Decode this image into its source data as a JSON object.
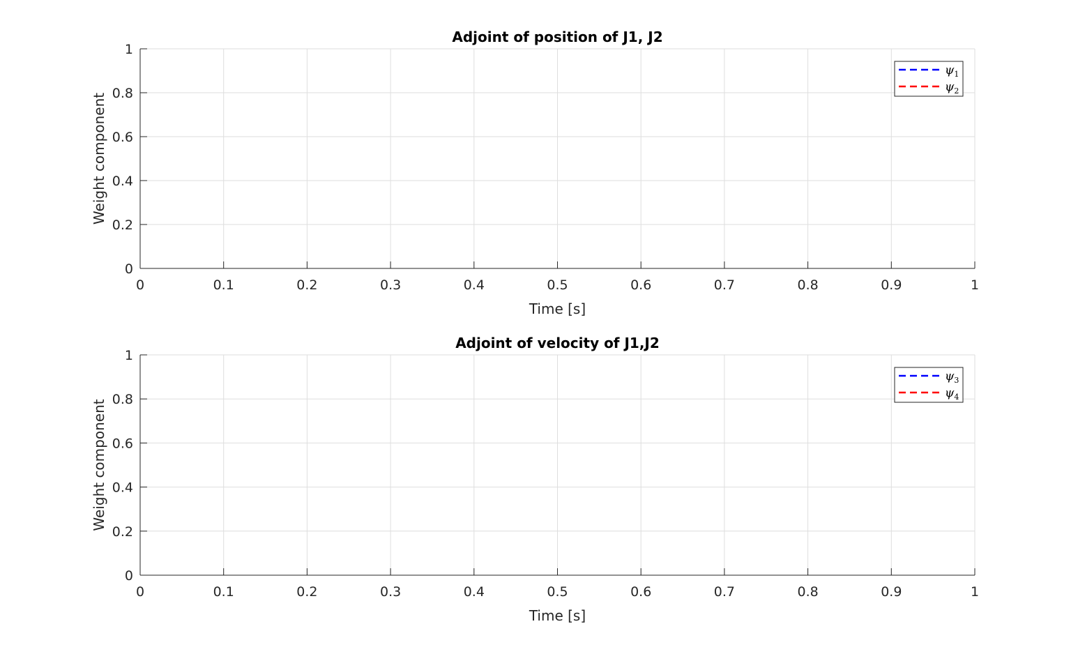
{
  "chart_data": [
    {
      "type": "line",
      "title": "Adjoint of position of J1, J2",
      "xlabel": "Time [s]",
      "ylabel": "Weight component",
      "xlim": [
        0,
        1
      ],
      "ylim": [
        0,
        1
      ],
      "xticks": [
        "0",
        "0.1",
        "0.2",
        "0.3",
        "0.4",
        "0.5",
        "0.6",
        "0.7",
        "0.8",
        "0.9",
        "1"
      ],
      "yticks": [
        "0",
        "0.2",
        "0.4",
        "0.6",
        "0.8",
        "1"
      ],
      "grid": true,
      "legend_position": "top-right",
      "series": [
        {
          "name": "ψ",
          "subscript": "1",
          "color": "#0000ff",
          "line_style": "dashed",
          "x": [],
          "y": []
        },
        {
          "name": "ψ",
          "subscript": "2",
          "color": "#ff0000",
          "line_style": "dashed",
          "x": [],
          "y": []
        }
      ]
    },
    {
      "type": "line",
      "title": "Adjoint of velocity of J1,J2",
      "xlabel": "Time [s]",
      "ylabel": "Weight component",
      "xlim": [
        0,
        1
      ],
      "ylim": [
        0,
        1
      ],
      "xticks": [
        "0",
        "0.1",
        "0.2",
        "0.3",
        "0.4",
        "0.5",
        "0.6",
        "0.7",
        "0.8",
        "0.9",
        "1"
      ],
      "yticks": [
        "0",
        "0.2",
        "0.4",
        "0.6",
        "0.8",
        "1"
      ],
      "grid": true,
      "legend_position": "top-right",
      "series": [
        {
          "name": "ψ",
          "subscript": "3",
          "color": "#0000ff",
          "line_style": "dashed",
          "x": [],
          "y": []
        },
        {
          "name": "ψ",
          "subscript": "4",
          "color": "#ff0000",
          "line_style": "dashed",
          "x": [],
          "y": []
        }
      ]
    }
  ]
}
